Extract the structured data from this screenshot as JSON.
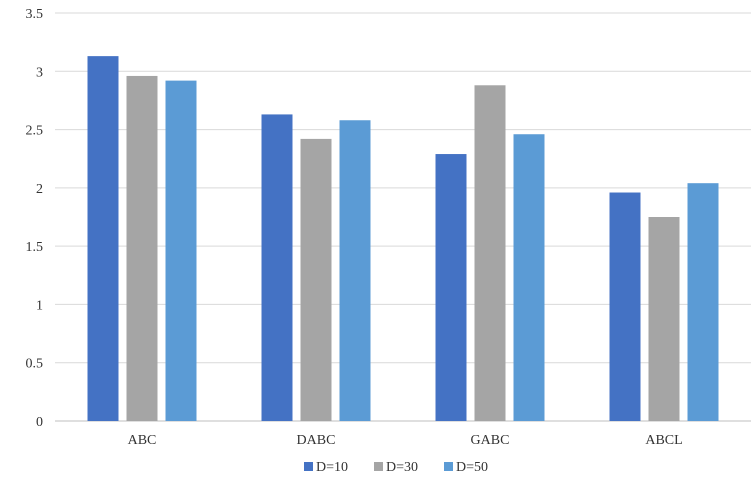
{
  "chart_data": {
    "type": "bar",
    "title": "",
    "xlabel": "",
    "ylabel": "",
    "categories": [
      "ABC",
      "DABC",
      "GABC",
      "ABCL"
    ],
    "series": [
      {
        "name": "D=10",
        "values": [
          3.13,
          2.63,
          2.29,
          1.96
        ],
        "color": "#4472C4"
      },
      {
        "name": "D=30",
        "values": [
          2.96,
          2.42,
          2.88,
          1.75
        ],
        "color": "#A5A5A5"
      },
      {
        "name": "D=50",
        "values": [
          2.92,
          2.58,
          2.46,
          2.04
        ],
        "color": "#5B9BD5"
      }
    ],
    "ylim": [
      0,
      3.5
    ],
    "yticks": [
      "0",
      "0.5",
      "1",
      "1.5",
      "2",
      "2.5",
      "3",
      "3.5"
    ],
    "grid": true,
    "legend_position": "bottom"
  }
}
